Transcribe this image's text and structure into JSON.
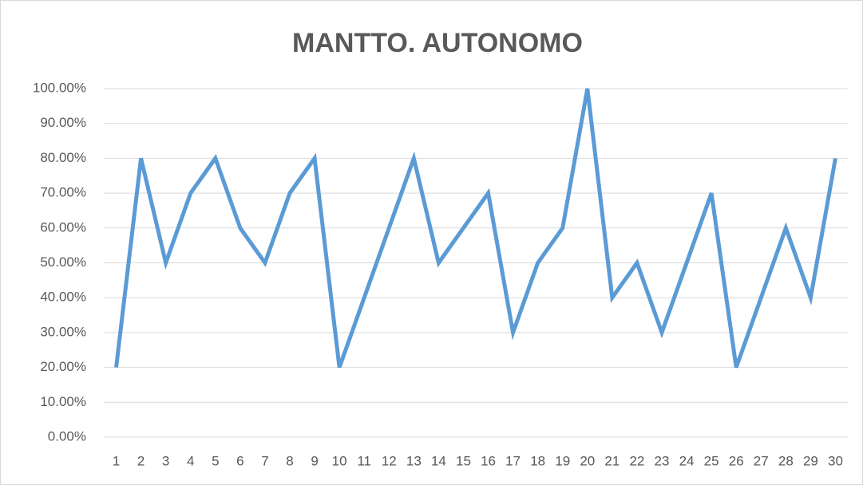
{
  "chart_data": {
    "type": "line",
    "title": "MANTTO. AUTONOMO",
    "categories": [
      "1",
      "2",
      "3",
      "4",
      "5",
      "6",
      "7",
      "8",
      "9",
      "10",
      "11",
      "12",
      "13",
      "14",
      "15",
      "16",
      "17",
      "18",
      "19",
      "20",
      "21",
      "22",
      "23",
      "24",
      "25",
      "26",
      "27",
      "28",
      "29",
      "30"
    ],
    "series": [
      {
        "color": "#5b9bd5",
        "values": [
          20,
          80,
          50,
          70,
          80,
          60,
          50,
          70,
          80,
          20,
          40,
          60,
          80,
          50,
          60,
          70,
          30,
          50,
          60,
          100,
          40,
          50,
          30,
          50,
          70,
          20,
          40,
          60,
          40,
          80
        ]
      }
    ],
    "ylim": [
      0,
      100
    ],
    "yticks": [
      {
        "value": 0,
        "label": "0.00%"
      },
      {
        "value": 10,
        "label": "10.00%"
      },
      {
        "value": 20,
        "label": "20.00%"
      },
      {
        "value": 30,
        "label": "30.00%"
      },
      {
        "value": 40,
        "label": "40.00%"
      },
      {
        "value": 50,
        "label": "50.00%"
      },
      {
        "value": 60,
        "label": "60.00%"
      },
      {
        "value": 70,
        "label": "70.00%"
      },
      {
        "value": 80,
        "label": "80.00%"
      },
      {
        "value": 90,
        "label": "90.00%"
      },
      {
        "value": 100,
        "label": "100.00%"
      }
    ],
    "grid": true
  }
}
